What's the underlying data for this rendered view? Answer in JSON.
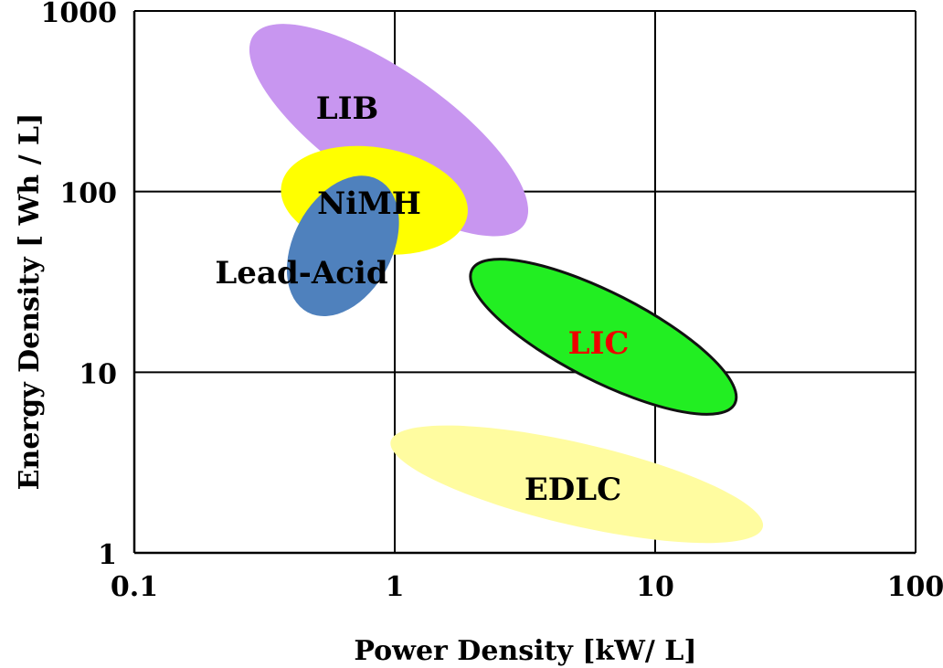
{
  "chart_data": {
    "type": "scatter",
    "title": "",
    "xlabel": "Power Density [kW/ L]",
    "ylabel": "Energy Density [ Wh / L]",
    "x_scale": "log",
    "y_scale": "log",
    "xlim": [
      0.1,
      100
    ],
    "ylim": [
      1,
      1000
    ],
    "grid": true,
    "x_ticks": [
      "0.1",
      "1",
      "10",
      "100"
    ],
    "y_ticks": [
      "1",
      "10",
      "100",
      "1000"
    ],
    "regions": [
      {
        "name": "LIB",
        "x_range": [
          0.3,
          3.0
        ],
        "y_range": [
          60,
          800
        ],
        "color": "#c896f0",
        "label_color": "#000000"
      },
      {
        "name": "NiMH",
        "x_range": [
          0.45,
          1.55
        ],
        "y_range": [
          40,
          200
        ],
        "color": "#ffff00",
        "label_color": "#000000"
      },
      {
        "name": "Lead-Acid",
        "x_range": [
          0.4,
          1.0
        ],
        "y_range": [
          25,
          100
        ],
        "color": "#4f81bd",
        "label_color": "#000000"
      },
      {
        "name": "LIC",
        "x_range": [
          2.0,
          20.0
        ],
        "y_range": [
          6.5,
          38
        ],
        "color": "#22ee22",
        "label_color": "#ee0000"
      },
      {
        "name": "EDLC",
        "x_range": [
          1.0,
          25.0
        ],
        "y_range": [
          1.15,
          5.0
        ],
        "color": "#fffca0",
        "label_color": "#000000"
      }
    ]
  }
}
